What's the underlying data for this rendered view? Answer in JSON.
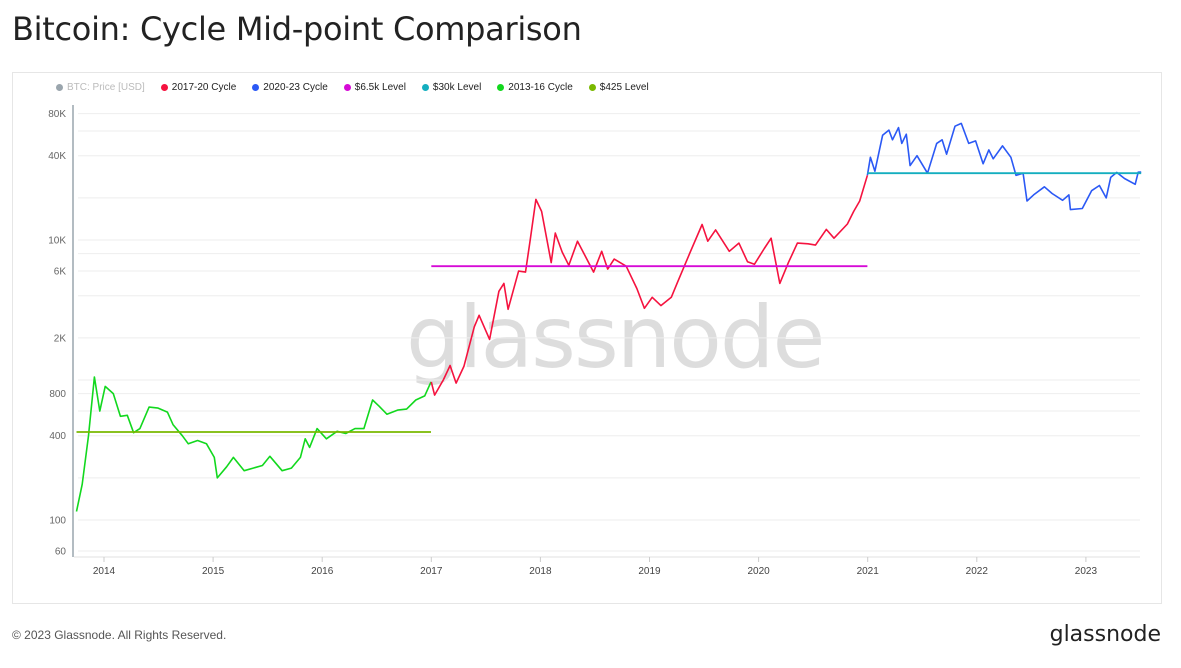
{
  "title": "Bitcoin: Cycle Mid-point Comparison",
  "footer": "© 2023 Glassnode. All Rights Reserved.",
  "logo": "glassnode",
  "watermark": "glassnode",
  "chart_data": {
    "type": "line",
    "yscale": "log",
    "ylim": [
      55,
      100000
    ],
    "xlim": [
      "2013-09-15",
      "2023-08-15"
    ],
    "grid": true,
    "legend_position": "top-left",
    "y_ticks": [
      {
        "v": 60,
        "label": "60"
      },
      {
        "v": 100,
        "label": "100"
      },
      {
        "v": 400,
        "label": "400"
      },
      {
        "v": 800,
        "label": "800"
      },
      {
        "v": 2000,
        "label": "2K"
      },
      {
        "v": 6000,
        "label": "6K"
      },
      {
        "v": 10000,
        "label": "10K"
      },
      {
        "v": 40000,
        "label": "40K"
      },
      {
        "v": 80000,
        "label": "80K"
      }
    ],
    "x_ticks": [
      "2014",
      "2015",
      "2016",
      "2017",
      "2018",
      "2019",
      "2020",
      "2021",
      "2022",
      "2023"
    ],
    "legend": [
      {
        "name": "BTC: Price [USD]",
        "color": "#9aa5ad",
        "muted": true
      },
      {
        "name": "2017-20 Cycle",
        "color": "#f5133f"
      },
      {
        "name": "2020-23 Cycle",
        "color": "#2b59f5"
      },
      {
        "name": "$6.5k Level",
        "color": "#d60ad6"
      },
      {
        "name": "$30k Level",
        "color": "#14aebf"
      },
      {
        "name": "2013-16 Cycle",
        "color": "#12d81e"
      },
      {
        "name": "$425 Level",
        "color": "#7ab800"
      }
    ],
    "series": [
      {
        "name": "2013-16 Cycle",
        "color": "#12d81e",
        "points": [
          [
            "2013-10-01",
            115
          ],
          [
            "2013-10-20",
            180
          ],
          [
            "2013-11-10",
            400
          ],
          [
            "2013-11-30",
            1050
          ],
          [
            "2013-12-18",
            600
          ],
          [
            "2014-01-05",
            900
          ],
          [
            "2014-02-01",
            800
          ],
          [
            "2014-02-25",
            550
          ],
          [
            "2014-03-20",
            560
          ],
          [
            "2014-04-10",
            420
          ],
          [
            "2014-05-01",
            450
          ],
          [
            "2014-06-01",
            640
          ],
          [
            "2014-07-01",
            630
          ],
          [
            "2014-08-01",
            590
          ],
          [
            "2014-08-20",
            480
          ],
          [
            "2014-09-20",
            400
          ],
          [
            "2014-10-10",
            350
          ],
          [
            "2014-11-10",
            370
          ],
          [
            "2014-12-10",
            350
          ],
          [
            "2015-01-05",
            280
          ],
          [
            "2015-01-15",
            200
          ],
          [
            "2015-02-15",
            240
          ],
          [
            "2015-03-10",
            280
          ],
          [
            "2015-04-15",
            225
          ],
          [
            "2015-05-15",
            235
          ],
          [
            "2015-06-15",
            245
          ],
          [
            "2015-07-10",
            285
          ],
          [
            "2015-08-20",
            225
          ],
          [
            "2015-09-20",
            235
          ],
          [
            "2015-10-20",
            280
          ],
          [
            "2015-11-05",
            380
          ],
          [
            "2015-11-20",
            330
          ],
          [
            "2015-12-15",
            450
          ],
          [
            "2016-01-15",
            380
          ],
          [
            "2016-02-20",
            430
          ],
          [
            "2016-03-20",
            415
          ],
          [
            "2016-04-20",
            450
          ],
          [
            "2016-05-20",
            450
          ],
          [
            "2016-06-18",
            720
          ],
          [
            "2016-07-10",
            650
          ],
          [
            "2016-08-05",
            570
          ],
          [
            "2016-09-10",
            610
          ],
          [
            "2016-10-10",
            620
          ],
          [
            "2016-11-10",
            720
          ],
          [
            "2016-12-10",
            770
          ],
          [
            "2016-12-31",
            970
          ]
        ]
      },
      {
        "name": "2017-20 Cycle",
        "color": "#f5133f",
        "points": [
          [
            "2017-01-01",
            970
          ],
          [
            "2017-01-12",
            780
          ],
          [
            "2017-02-10",
            1000
          ],
          [
            "2017-03-05",
            1270
          ],
          [
            "2017-03-25",
            950
          ],
          [
            "2017-04-20",
            1250
          ],
          [
            "2017-05-25",
            2400
          ],
          [
            "2017-06-10",
            2900
          ],
          [
            "2017-07-15",
            1950
          ],
          [
            "2017-08-15",
            4300
          ],
          [
            "2017-09-01",
            4900
          ],
          [
            "2017-09-15",
            3200
          ],
          [
            "2017-10-20",
            6000
          ],
          [
            "2017-11-12",
            5900
          ],
          [
            "2017-11-28",
            10000
          ],
          [
            "2017-12-17",
            19500
          ],
          [
            "2018-01-05",
            16000
          ],
          [
            "2018-02-06",
            6900
          ],
          [
            "2018-02-20",
            11200
          ],
          [
            "2018-03-15",
            8200
          ],
          [
            "2018-04-06",
            6600
          ],
          [
            "2018-05-05",
            9800
          ],
          [
            "2018-06-28",
            5900
          ],
          [
            "2018-07-25",
            8300
          ],
          [
            "2018-08-14",
            6200
          ],
          [
            "2018-09-05",
            7300
          ],
          [
            "2018-10-15",
            6500
          ],
          [
            "2018-11-20",
            4500
          ],
          [
            "2018-12-15",
            3250
          ],
          [
            "2019-01-10",
            3900
          ],
          [
            "2019-02-08",
            3400
          ],
          [
            "2019-03-15",
            3900
          ],
          [
            "2019-04-05",
            5000
          ],
          [
            "2019-05-15",
            8000
          ],
          [
            "2019-06-26",
            12900
          ],
          [
            "2019-07-15",
            9800
          ],
          [
            "2019-08-10",
            11800
          ],
          [
            "2019-09-25",
            8300
          ],
          [
            "2019-10-27",
            9500
          ],
          [
            "2019-11-25",
            7000
          ],
          [
            "2019-12-18",
            6700
          ],
          [
            "2020-01-20",
            8700
          ],
          [
            "2020-02-12",
            10300
          ],
          [
            "2020-03-12",
            4900
          ],
          [
            "2020-04-10",
            6900
          ],
          [
            "2020-05-10",
            9500
          ],
          [
            "2020-06-15",
            9400
          ],
          [
            "2020-07-10",
            9200
          ],
          [
            "2020-08-15",
            11900
          ],
          [
            "2020-09-10",
            10300
          ],
          [
            "2020-10-25",
            13000
          ],
          [
            "2020-11-15",
            16000
          ],
          [
            "2020-12-05",
            19000
          ],
          [
            "2020-12-31",
            29000
          ]
        ]
      },
      {
        "name": "2020-23 Cycle",
        "color": "#2b59f5",
        "points": [
          [
            "2020-12-31",
            29000
          ],
          [
            "2021-01-10",
            39000
          ],
          [
            "2021-01-25",
            31000
          ],
          [
            "2021-02-20",
            56000
          ],
          [
            "2021-03-13",
            61000
          ],
          [
            "2021-03-25",
            52000
          ],
          [
            "2021-04-14",
            63500
          ],
          [
            "2021-04-25",
            49000
          ],
          [
            "2021-05-10",
            57000
          ],
          [
            "2021-05-23",
            34000
          ],
          [
            "2021-06-15",
            40000
          ],
          [
            "2021-07-20",
            30000
          ],
          [
            "2021-08-20",
            49000
          ],
          [
            "2021-09-07",
            52000
          ],
          [
            "2021-09-22",
            41000
          ],
          [
            "2021-10-20",
            65000
          ],
          [
            "2021-11-10",
            68000
          ],
          [
            "2021-12-05",
            49000
          ],
          [
            "2021-12-28",
            51000
          ],
          [
            "2022-01-22",
            35000
          ],
          [
            "2022-02-10",
            44000
          ],
          [
            "2022-02-25",
            38000
          ],
          [
            "2022-03-28",
            47000
          ],
          [
            "2022-04-25",
            39000
          ],
          [
            "2022-05-12",
            29000
          ],
          [
            "2022-06-05",
            30000
          ],
          [
            "2022-06-18",
            19000
          ],
          [
            "2022-07-10",
            21000
          ],
          [
            "2022-08-15",
            24000
          ],
          [
            "2022-09-10",
            21500
          ],
          [
            "2022-10-15",
            19200
          ],
          [
            "2022-11-05",
            21000
          ],
          [
            "2022-11-10",
            16500
          ],
          [
            "2022-12-20",
            16800
          ],
          [
            "2023-01-20",
            22500
          ],
          [
            "2023-02-15",
            24500
          ],
          [
            "2023-03-10",
            20000
          ],
          [
            "2023-03-25",
            28000
          ],
          [
            "2023-04-14",
            30400
          ],
          [
            "2023-05-10",
            27500
          ],
          [
            "2023-06-15",
            25000
          ],
          [
            "2023-06-25",
            30500
          ],
          [
            "2023-07-05",
            30600
          ]
        ]
      }
    ],
    "levels": [
      {
        "name": "$425 Level",
        "color": "#7ab800",
        "value": 425,
        "from": "2013-10-01",
        "to": "2016-12-31"
      },
      {
        "name": "$6.5k Level",
        "color": "#d60ad6",
        "value": 6500,
        "from": "2017-01-01",
        "to": "2020-12-31"
      },
      {
        "name": "$30k Level",
        "color": "#14aebf",
        "value": 30000,
        "from": "2020-12-31",
        "to": "2023-07-05"
      }
    ]
  }
}
